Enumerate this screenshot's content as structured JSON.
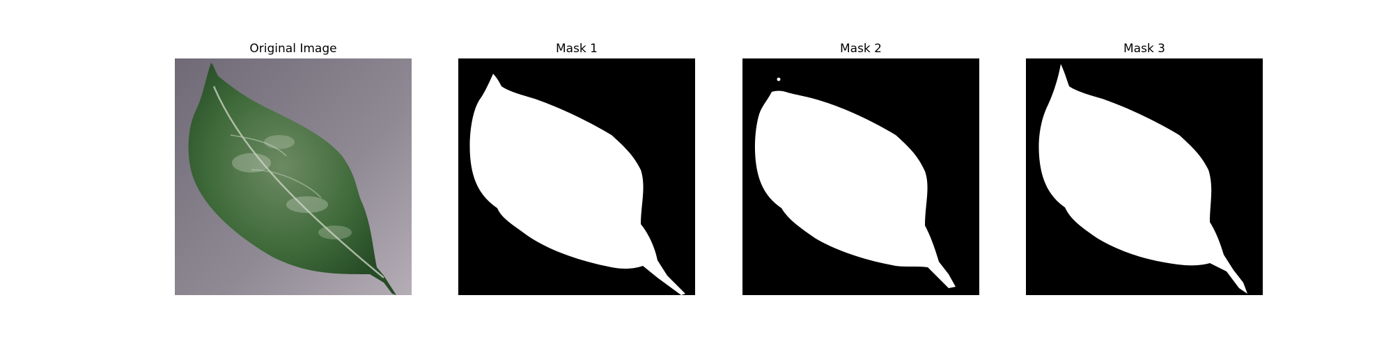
{
  "panels": [
    {
      "title": "Original Image",
      "kind": "photo",
      "subject": "green leaf on grey background"
    },
    {
      "title": "Mask 1",
      "kind": "mask",
      "foreground": "#ffffff",
      "background": "#000000"
    },
    {
      "title": "Mask 2",
      "kind": "mask",
      "foreground": "#ffffff",
      "background": "#000000"
    },
    {
      "title": "Mask 3",
      "kind": "mask",
      "foreground": "#ffffff",
      "background": "#000000"
    }
  ],
  "colors": {
    "photo_background": "#8f8a94",
    "leaf_dark": "#2f5a2e",
    "leaf_mid": "#4f7a47",
    "leaf_light": "#b8c6b0"
  }
}
